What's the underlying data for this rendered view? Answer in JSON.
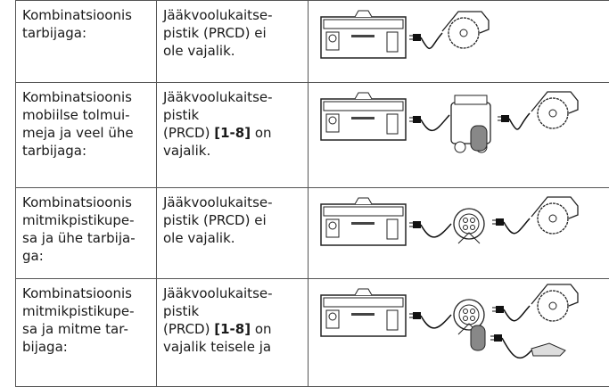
{
  "rows": [
    {
      "label": [
        [
          "Kombinatsioonis"
        ],
        [
          "tarbijaga:"
        ]
      ],
      "note": [
        [
          "Jääkvoolukaitse-"
        ],
        [
          "pistik (PRCD) ei"
        ],
        [
          "ole vajalik."
        ]
      ]
    },
    {
      "label": [
        [
          "Kombinatsioonis"
        ],
        [
          "mobiilse tolmui-"
        ],
        [
          "meja ja veel ühe"
        ],
        [
          "tarbijaga:"
        ]
      ],
      "note": [
        [
          "Jääkvoolukaitse-"
        ],
        [
          "pistik"
        ],
        [
          "(PRCD)",
          {
            "bold": "[1-8]"
          },
          "on"
        ],
        [
          "vajalik."
        ]
      ]
    },
    {
      "label": [
        [
          "Kombinatsioonis"
        ],
        [
          "mitmikpistikupe-"
        ],
        [
          "sa ja ühe tarbija-"
        ],
        [
          "ga:"
        ]
      ],
      "note": [
        [
          "Jääkvoolukaitse-"
        ],
        [
          "pistik (PRCD) ei"
        ],
        [
          "ole vajalik."
        ]
      ]
    },
    {
      "label": [
        [
          "Kombinatsioonis"
        ],
        [
          "mitmikpistikupe-"
        ],
        [
          "sa ja mitme tar-"
        ],
        [
          "bijaga:"
        ]
      ],
      "note": [
        [
          "Jääkvoolukaitse-"
        ],
        [
          "pistik"
        ],
        [
          "(PRCD)",
          {
            "bold": "[1-8]"
          },
          "on"
        ],
        [
          "vajalik teisele ja"
        ]
      ]
    }
  ]
}
